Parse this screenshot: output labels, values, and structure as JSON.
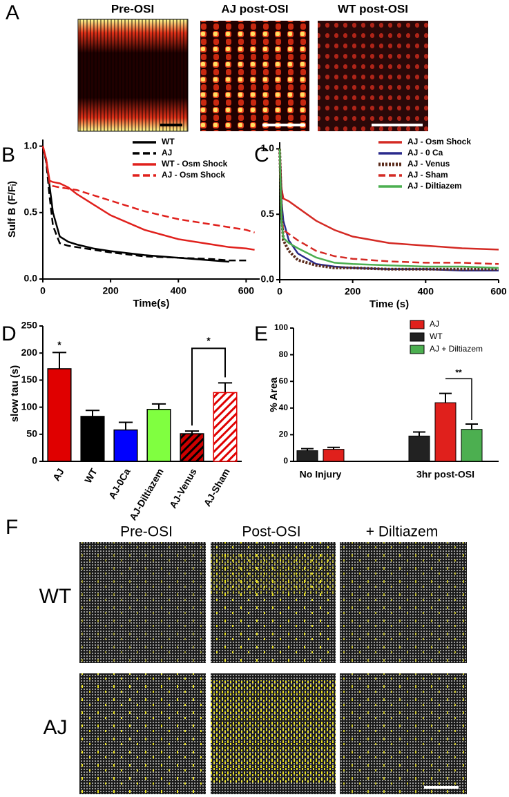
{
  "panel_a": {
    "label": "A",
    "titles": [
      "Pre-OSI",
      "AJ post-OSI",
      "WT post-OSI"
    ]
  },
  "chart_data": [
    {
      "type": "line",
      "label": "B",
      "xlabel": "Time(s)",
      "ylabel": "Sulf B (F/Fᵢ)",
      "x": [
        0,
        10,
        20,
        30,
        50,
        75,
        100,
        150,
        200,
        300,
        400,
        500,
        550,
        600,
        625
      ],
      "xlim": [
        0,
        640
      ],
      "ylim": [
        0,
        1.05
      ],
      "xticks": [
        0,
        200,
        400,
        600
      ],
      "yticks": [
        {
          "value": 0,
          "label": "0.0"
        },
        {
          "value": 0.5,
          "label": "0.5"
        },
        {
          "value": 1,
          "label": "1.0"
        }
      ],
      "series": [
        {
          "name": "WT",
          "color": "#000000",
          "dash": "solid",
          "values": [
            1.0,
            0.9,
            0.7,
            0.5,
            0.32,
            0.28,
            0.26,
            0.23,
            0.21,
            0.18,
            0.16,
            0.14,
            0.13,
            null,
            null
          ]
        },
        {
          "name": "AJ",
          "color": "#000000",
          "dash": "dashed",
          "values": [
            1.0,
            0.88,
            0.62,
            0.4,
            0.27,
            0.25,
            0.24,
            0.22,
            0.2,
            0.17,
            0.16,
            0.15,
            0.14,
            0.14,
            null
          ]
        },
        {
          "name": "WT - Osm Shock",
          "color": "#e0201c",
          "dash": "solid",
          "values": [
            1.0,
            0.9,
            0.74,
            0.73,
            0.72,
            0.69,
            0.64,
            0.56,
            0.48,
            0.37,
            0.3,
            0.26,
            0.24,
            0.23,
            0.22
          ]
        },
        {
          "name": "AJ - Osm Shock",
          "color": "#e0201c",
          "dash": "dashed",
          "values": [
            1.0,
            0.9,
            0.72,
            0.7,
            0.69,
            0.68,
            0.67,
            0.63,
            0.59,
            0.51,
            0.45,
            0.41,
            0.39,
            0.37,
            0.35
          ]
        }
      ]
    },
    {
      "type": "line",
      "label": "C",
      "xlabel": "Time (s)",
      "x": [
        0,
        5,
        10,
        25,
        50,
        100,
        150,
        200,
        300,
        400,
        500,
        600
      ],
      "xlim": [
        0,
        600
      ],
      "ylim": [
        0,
        1.05
      ],
      "xticks": [
        0,
        200,
        400,
        600
      ],
      "yticks": [
        {
          "value": 0,
          "label": "0.0"
        },
        {
          "value": 0.5,
          "label": "0.5"
        },
        {
          "value": 1,
          "label": "1.0"
        }
      ],
      "series": [
        {
          "name": "AJ - Osm Shock",
          "color": "#d42a24",
          "dash": "solid",
          "values": [
            1.0,
            0.7,
            0.62,
            0.6,
            0.55,
            0.45,
            0.38,
            0.33,
            0.28,
            0.26,
            0.24,
            0.23
          ]
        },
        {
          "name": "AJ - 0 Ca",
          "color": "#2a2a8c",
          "dash": "solid",
          "values": [
            1.0,
            0.6,
            0.45,
            0.3,
            0.2,
            0.12,
            0.1,
            0.09,
            0.08,
            0.08,
            0.07,
            0.07
          ]
        },
        {
          "name": "AJ - Venus",
          "color": "#5a2a1a",
          "dash": "dotted",
          "values": [
            1.0,
            0.5,
            0.3,
            0.22,
            0.15,
            0.11,
            0.09,
            0.09,
            0.08,
            0.08,
            0.08,
            0.08
          ]
        },
        {
          "name": "AJ - Sham",
          "color": "#d42a24",
          "dash": "dashed",
          "values": [
            1.0,
            0.45,
            0.38,
            0.35,
            0.3,
            0.22,
            0.18,
            0.16,
            0.14,
            0.13,
            0.13,
            0.12
          ]
        },
        {
          "name": "AJ - Diltiazem",
          "color": "#4caf50",
          "dash": "solid",
          "values": [
            1.0,
            0.45,
            0.32,
            0.28,
            0.24,
            0.17,
            0.13,
            0.12,
            0.11,
            0.1,
            0.1,
            0.09
          ]
        }
      ]
    },
    {
      "type": "bar",
      "label": "D",
      "ylabel": "slow tau (s)",
      "categories": [
        "AJ",
        "WT",
        "AJ-0Ca",
        "AJ-Diltiazem",
        "AJ-Venus",
        "AJ-Sham"
      ],
      "values": [
        171,
        83,
        58,
        96,
        51,
        127
      ],
      "errors": [
        30,
        11,
        14,
        10,
        5,
        18
      ],
      "colors": [
        "#e00000",
        "#000000",
        "#0000ff",
        "#80ff40",
        "#cc0000",
        "#ffffff"
      ],
      "hatch": [
        false,
        false,
        false,
        false,
        true,
        true
      ],
      "ylim": [
        0,
        250
      ],
      "yticks": [
        0,
        50,
        100,
        150,
        200,
        250
      ],
      "annotations": [
        "*",
        "*"
      ]
    },
    {
      "type": "grouped_bar",
      "label": "E",
      "ylabel": "% Area",
      "categories": [
        "No  Injury",
        "3hr post-OSI"
      ],
      "ylim": [
        0,
        100
      ],
      "yticks": [
        0,
        20,
        40,
        60,
        80,
        100
      ],
      "series": [
        {
          "name": "AJ",
          "color": "#e0201c",
          "values": [
            9,
            44
          ],
          "errors": [
            1.5,
            7
          ]
        },
        {
          "name": "WT",
          "color": "#222222",
          "values": [
            8,
            19
          ],
          "errors": [
            1.5,
            3
          ]
        },
        {
          "name": "AJ + Diltiazem",
          "color": "#4caf50",
          "values": [
            null,
            24
          ],
          "errors": [
            null,
            4
          ]
        }
      ],
      "annotations": [
        "**"
      ]
    }
  ],
  "panel_f": {
    "label": "F",
    "columns": [
      "Pre-OSI",
      "Post-OSI",
      "+ Diltiazem"
    ],
    "rows": [
      "WT",
      "AJ"
    ]
  }
}
